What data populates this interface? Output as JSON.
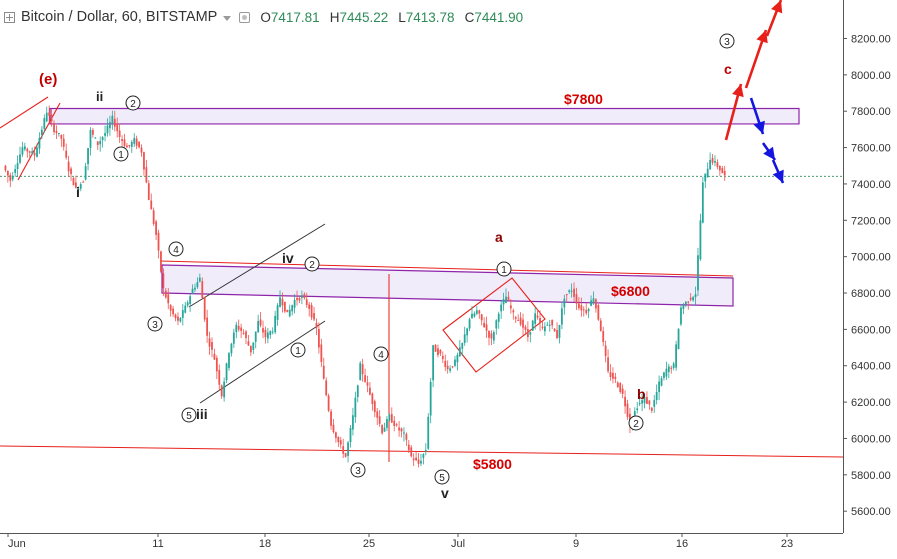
{
  "header": {
    "symbol": "Bitcoin / Dollar, 60, BITSTAMP",
    "open_label": "O",
    "open": "7417.81",
    "high_label": "H",
    "high": "7445.22",
    "low_label": "L",
    "low": "7413.78",
    "close_label": "C",
    "close": "7441.90"
  },
  "chart_data": {
    "type": "candlestick",
    "title": "Bitcoin / Dollar, 60, BITSTAMP",
    "ylim": [
      5480,
      8300
    ],
    "y_ticks": [
      "5600.00",
      "5800.00",
      "6000.00",
      "6200.00",
      "6400.00",
      "6600.00",
      "6800.00",
      "7000.00",
      "7200.00",
      "7400.00",
      "7600.00",
      "7800.00",
      "8000.00",
      "8200.00"
    ],
    "x_ticks": [
      "Jun",
      "11",
      "18",
      "25",
      "Jul",
      "9",
      "16",
      "23"
    ],
    "last_price": 7441.9,
    "price_path": [
      [
        0,
        7500
      ],
      [
        3,
        7420
      ],
      [
        8,
        7600
      ],
      [
        13,
        7560
      ],
      [
        18,
        7800
      ],
      [
        21,
        7700
      ],
      [
        24,
        7650
      ],
      [
        27,
        7480
      ],
      [
        30,
        7370
      ],
      [
        33,
        7420
      ],
      [
        36,
        7690
      ],
      [
        39,
        7620
      ],
      [
        42,
        7680
      ],
      [
        45,
        7760
      ],
      [
        48,
        7660
      ],
      [
        51,
        7600
      ],
      [
        54,
        7640
      ],
      [
        57,
        7580
      ],
      [
        60,
        7320
      ],
      [
        63,
        7120
      ],
      [
        66,
        6820
      ],
      [
        69,
        6700
      ],
      [
        72,
        6640
      ],
      [
        75,
        6720
      ],
      [
        78,
        6820
      ],
      [
        81,
        6880
      ],
      [
        84,
        6560
      ],
      [
        87,
        6440
      ],
      [
        90,
        6240
      ],
      [
        93,
        6480
      ],
      [
        96,
        6620
      ],
      [
        99,
        6580
      ],
      [
        102,
        6480
      ],
      [
        105,
        6640
      ],
      [
        108,
        6560
      ],
      [
        111,
        6600
      ],
      [
        114,
        6780
      ],
      [
        117,
        6680
      ],
      [
        120,
        6760
      ],
      [
        123,
        6780
      ],
      [
        126,
        6720
      ],
      [
        129,
        6600
      ],
      [
        132,
        6320
      ],
      [
        135,
        6080
      ],
      [
        138,
        5980
      ],
      [
        141,
        5900
      ],
      [
        144,
        6120
      ],
      [
        147,
        6400
      ],
      [
        150,
        6280
      ],
      [
        153,
        6160
      ],
      [
        156,
        6040
      ],
      [
        159,
        6120
      ],
      [
        162,
        6060
      ],
      [
        165,
        6020
      ],
      [
        168,
        5900
      ],
      [
        171,
        5860
      ],
      [
        174,
        5940
      ],
      [
        177,
        6500
      ],
      [
        180,
        6460
      ],
      [
        183,
        6380
      ],
      [
        186,
        6420
      ],
      [
        189,
        6520
      ],
      [
        192,
        6660
      ],
      [
        195,
        6700
      ],
      [
        198,
        6620
      ],
      [
        201,
        6540
      ],
      [
        204,
        6700
      ],
      [
        207,
        6780
      ],
      [
        210,
        6680
      ],
      [
        213,
        6640
      ],
      [
        216,
        6560
      ],
      [
        219,
        6680
      ],
      [
        222,
        6600
      ],
      [
        225,
        6640
      ],
      [
        228,
        6560
      ],
      [
        231,
        6780
      ],
      [
        234,
        6820
      ],
      [
        237,
        6720
      ],
      [
        240,
        6700
      ],
      [
        243,
        6780
      ],
      [
        246,
        6600
      ],
      [
        249,
        6360
      ],
      [
        252,
        6320
      ],
      [
        255,
        6240
      ],
      [
        258,
        6080
      ],
      [
        261,
        6180
      ],
      [
        264,
        6220
      ],
      [
        267,
        6160
      ],
      [
        270,
        6300
      ],
      [
        273,
        6380
      ],
      [
        276,
        6400
      ],
      [
        279,
        6720
      ],
      [
        282,
        6760
      ],
      [
        285,
        6800
      ],
      [
        288,
        7400
      ],
      [
        291,
        7540
      ],
      [
        294,
        7500
      ],
      [
        297,
        7441.9
      ]
    ],
    "levels": [
      {
        "label": "$7800",
        "low": 7730,
        "high": 7815
      },
      {
        "label": "$6800",
        "low": 6640,
        "high": 6790
      },
      {
        "label": "$5800",
        "value": 5800
      }
    ],
    "wave_labels": [
      {
        "text": "(e)",
        "color": "#c00000"
      },
      {
        "text": "ii"
      },
      {
        "text": "i"
      },
      {
        "text": "iii"
      },
      {
        "text": "iv"
      },
      {
        "text": "v"
      },
      {
        "text": "a",
        "color": "#8b0000"
      },
      {
        "text": "b",
        "color": "#8b0000"
      },
      {
        "text": "c",
        "color": "#c00000"
      }
    ],
    "circled_labels": [
      "2",
      "1",
      "4",
      "3",
      "5",
      "2",
      "1",
      "4",
      "3",
      "5",
      "1",
      "2",
      "3"
    ],
    "arrows": {
      "up": "red",
      "down": "blue"
    },
    "colors": {
      "up": "#26a69a",
      "down": "#ef5350",
      "red_marks": "#e8201a",
      "blue_marks": "#1515e0",
      "zone": "#8e24aa",
      "level_text": "#d50000",
      "wave_label": "#8b0000"
    }
  }
}
